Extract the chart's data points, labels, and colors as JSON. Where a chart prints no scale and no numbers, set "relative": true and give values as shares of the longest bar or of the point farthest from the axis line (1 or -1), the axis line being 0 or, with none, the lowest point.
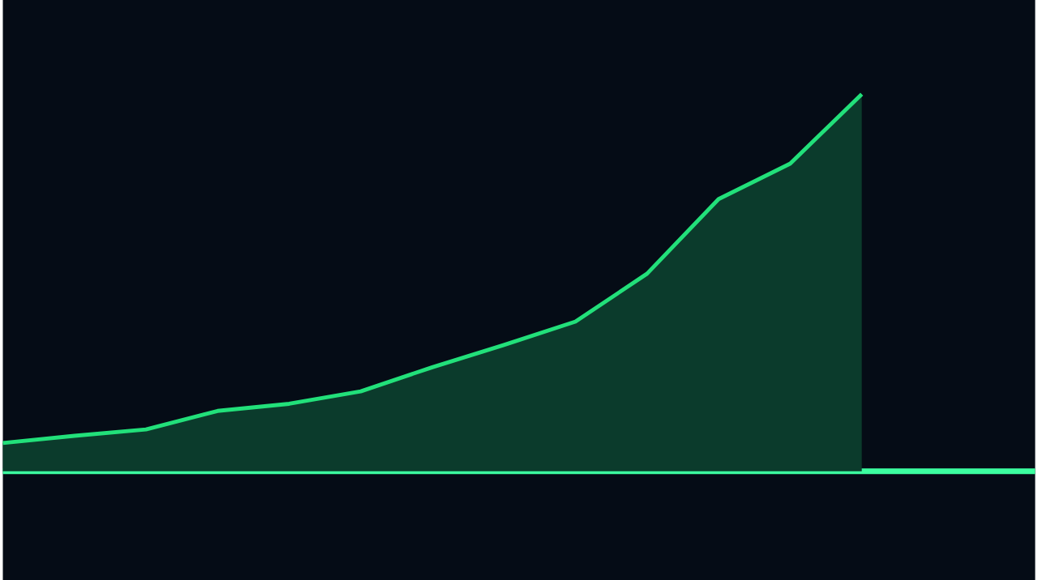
{
  "chart_data": {
    "type": "area",
    "relative": true,
    "categories": [
      null,
      null,
      null,
      null,
      null,
      null,
      null,
      null,
      null,
      null,
      null,
      null,
      null
    ],
    "series": [
      {
        "color": "#22e07a",
        "values": [
          0.075,
          0.094,
          0.111,
          0.16,
          0.179,
          0.212,
          0.276,
          0.335,
          0.397,
          0.524,
          0.722,
          0.816,
          1.0
        ]
      }
    ]
  }
}
